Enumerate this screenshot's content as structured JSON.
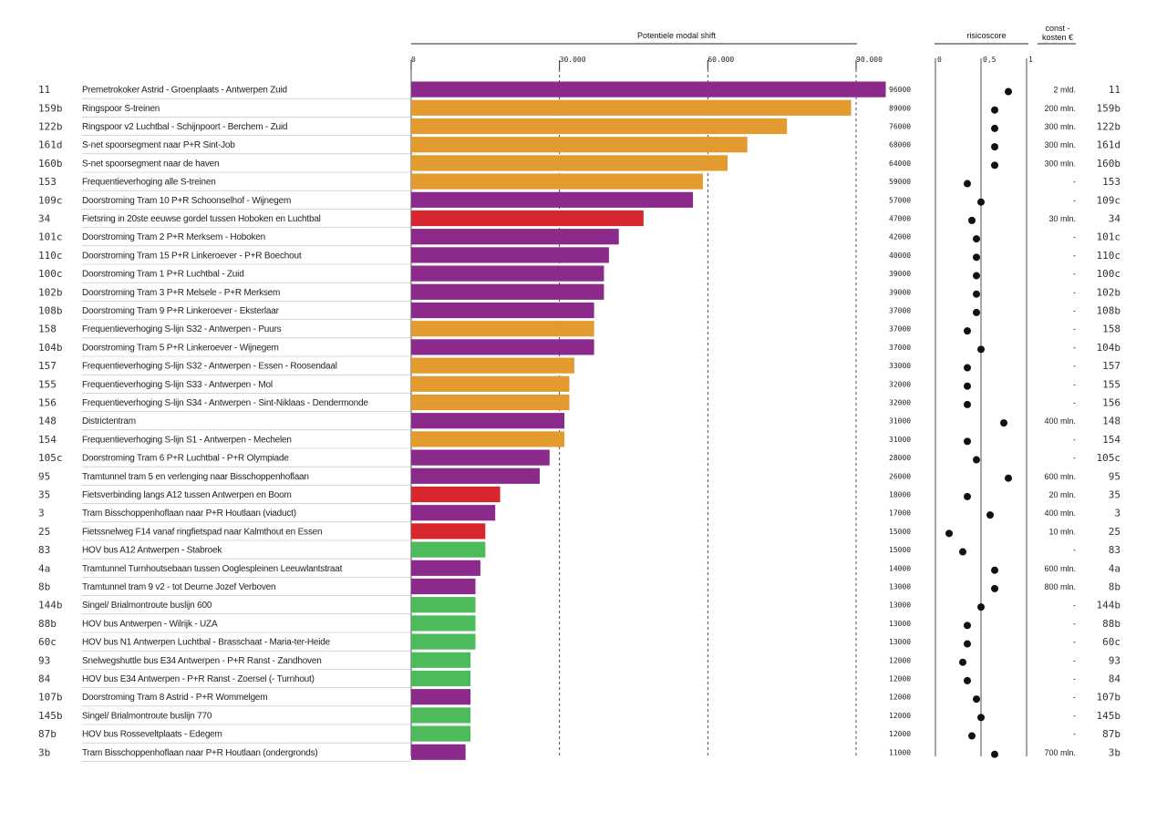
{
  "colors": {
    "tram": "#8c2a8c",
    "rail": "#e39a2e",
    "bike": "#d8262e",
    "bus": "#4dbb5c",
    "dot": "#111111",
    "grid": "#222222"
  },
  "headers": {
    "shift": "Potentiele modal shift",
    "risk": "risicoscore",
    "cost_line1": "const -",
    "cost_line2": "kosten €"
  },
  "chart_data": {
    "type": "bar",
    "orientation": "horizontal",
    "title": "Potentiele modal shift",
    "xlim": [
      0,
      90000
    ],
    "xticks": [
      "0",
      "30.000",
      "60.000",
      "90.000"
    ],
    "xtick_values": [
      0,
      30000,
      60000,
      90000
    ],
    "risk_lim": [
      0,
      1
    ],
    "risk_ticks": [
      "0",
      "0,5",
      "1"
    ],
    "risk_tick_values": [
      0,
      0.5,
      1
    ],
    "rows": [
      {
        "id": "11",
        "label": "Premetrokoker Astrid - Groenplaats - Antwerpen Zuid",
        "value": 96000,
        "value_label": "96000",
        "color": "tram",
        "risk": 0.8,
        "cost": "2 mld."
      },
      {
        "id": "159b",
        "label": "Ringspoor S-treinen",
        "value": 89000,
        "value_label": "89000",
        "color": "rail",
        "risk": 0.65,
        "cost": "200 mln."
      },
      {
        "id": "122b",
        "label": "Ringspoor v2 Luchtbal - Schijnpoort - Berchem - Zuid",
        "value": 76000,
        "value_label": "76000",
        "color": "rail",
        "risk": 0.65,
        "cost": "300 mln."
      },
      {
        "id": "161d",
        "label": "S-net spoorsegment naar P+R Sint-Job",
        "value": 68000,
        "value_label": "68000",
        "color": "rail",
        "risk": 0.65,
        "cost": "300 mln."
      },
      {
        "id": "160b",
        "label": "S-net spoorsegment naar de haven",
        "value": 64000,
        "value_label": "64000",
        "color": "rail",
        "risk": 0.65,
        "cost": "300 mln."
      },
      {
        "id": "153",
        "label": "Frequentieverhoging alle S-treinen",
        "value": 59000,
        "value_label": "59000",
        "color": "rail",
        "risk": 0.35,
        "cost": "-"
      },
      {
        "id": "109c",
        "label": "Doorstroming Tram 10 P+R Schoonselhof - Wijnegem",
        "value": 57000,
        "value_label": "57000",
        "color": "tram",
        "risk": 0.5,
        "cost": "-"
      },
      {
        "id": "34",
        "label": "Fietsring in 20ste eeuwse gordel tussen Hoboken en Luchtbal",
        "value": 47000,
        "value_label": "47000",
        "color": "bike",
        "risk": 0.4,
        "cost": "30 mln."
      },
      {
        "id": "101c",
        "label": "Doorstroming Tram 2 P+R Merksem - Hoboken",
        "value": 42000,
        "value_label": "42000",
        "color": "tram",
        "risk": 0.45,
        "cost": "-"
      },
      {
        "id": "110c",
        "label": "Doorstroming Tram 15 P+R Linkeroever - P+R Boechout",
        "value": 40000,
        "value_label": "40000",
        "color": "tram",
        "risk": 0.45,
        "cost": "-"
      },
      {
        "id": "100c",
        "label": "Doorstroming Tram 1 P+R Luchtbal - Zuid",
        "value": 39000,
        "value_label": "39000",
        "color": "tram",
        "risk": 0.45,
        "cost": "-"
      },
      {
        "id": "102b",
        "label": "Doorstroming Tram 3 P+R Melsele - P+R Merksem",
        "value": 39000,
        "value_label": "39000",
        "color": "tram",
        "risk": 0.45,
        "cost": "-"
      },
      {
        "id": "108b",
        "label": "Doorstroming Tram 9 P+R Linkeroever - Eksterlaar",
        "value": 37000,
        "value_label": "37000",
        "color": "tram",
        "risk": 0.45,
        "cost": "-"
      },
      {
        "id": "158",
        "label": "Frequentieverhoging S-lijn S32 - Antwerpen - Puurs",
        "value": 37000,
        "value_label": "37000",
        "color": "rail",
        "risk": 0.35,
        "cost": "-"
      },
      {
        "id": "104b",
        "label": "Doorstroming Tram 5 P+R Linkeroever - Wijnegem",
        "value": 37000,
        "value_label": "37000",
        "color": "tram",
        "risk": 0.5,
        "cost": "-"
      },
      {
        "id": "157",
        "label": "Frequentieverhoging S-lijn S32 - Antwerpen - Essen - Roosendaal",
        "value": 33000,
        "value_label": "33000",
        "color": "rail",
        "risk": 0.35,
        "cost": "-"
      },
      {
        "id": "155",
        "label": "Frequentieverhoging S-lijn S33 - Antwerpen - Mol",
        "value": 32000,
        "value_label": "32000",
        "color": "rail",
        "risk": 0.35,
        "cost": "-"
      },
      {
        "id": "156",
        "label": "Frequentieverhoging S-lijn S34 - Antwerpen - Sint-Niklaas - Dendermonde",
        "value": 32000,
        "value_label": "32000",
        "color": "rail",
        "risk": 0.35,
        "cost": "-"
      },
      {
        "id": "148",
        "label": "Districtentram",
        "value": 31000,
        "value_label": "31000",
        "color": "tram",
        "risk": 0.75,
        "cost": "400 mln."
      },
      {
        "id": "154",
        "label": "Frequentieverhoging S-lijn S1 - Antwerpen - Mechelen",
        "value": 31000,
        "value_label": "31000",
        "color": "rail",
        "risk": 0.35,
        "cost": "-"
      },
      {
        "id": "105c",
        "label": "Doorstroming Tram 6 P+R Luchtbal - P+R Olympiade",
        "value": 28000,
        "value_label": "28000",
        "color": "tram",
        "risk": 0.45,
        "cost": "-"
      },
      {
        "id": "95",
        "label": "Tramtunnel tram 5 en verlenging naar Bisschoppenhoflaan",
        "value": 26000,
        "value_label": "26000",
        "color": "tram",
        "risk": 0.8,
        "cost": "600 mln."
      },
      {
        "id": "35",
        "label": "Fietsverbinding langs A12 tussen Antwerpen en Boom",
        "value": 18000,
        "value_label": "18000",
        "color": "bike",
        "risk": 0.35,
        "cost": "20 mln."
      },
      {
        "id": "3",
        "label": "Tram Bisschoppenhoflaan naar P+R Houtlaan (viaduct)",
        "value": 17000,
        "value_label": "17000",
        "color": "tram",
        "risk": 0.6,
        "cost": "400 mln."
      },
      {
        "id": "25",
        "label": "Fietssnelweg F14 vanaf ringfietspad naar Kalmthout en Essen",
        "value": 15000,
        "value_label": "15000",
        "color": "bike",
        "risk": 0.15,
        "cost": "10 mln."
      },
      {
        "id": "83",
        "label": "HOV bus A12 Antwerpen - Stabroek",
        "value": 15000,
        "value_label": "15000",
        "color": "bus",
        "risk": 0.3,
        "cost": "-"
      },
      {
        "id": "4a",
        "label": "Tramtunnel Turnhoutsebaan tussen Ooglespleinen Leeuwlantstraat",
        "value": 14000,
        "value_label": "14000",
        "color": "tram",
        "risk": 0.65,
        "cost": "600 mln."
      },
      {
        "id": "8b",
        "label": "Tramtunnel tram 9 v2 - tot Deurne Jozef Verboven",
        "value": 13000,
        "value_label": "13000",
        "color": "tram",
        "risk": 0.65,
        "cost": "800 mln."
      },
      {
        "id": "144b",
        "label": "Singel/ Brialmontroute buslijn 600",
        "value": 13000,
        "value_label": "13000",
        "color": "bus",
        "risk": 0.5,
        "cost": "-"
      },
      {
        "id": "88b",
        "label": "HOV bus Antwerpen - Wilrijk - UZA",
        "value": 13000,
        "value_label": "13000",
        "color": "bus",
        "risk": 0.35,
        "cost": "-"
      },
      {
        "id": "60c",
        "label": "HOV bus N1 Antwerpen Luchtbal - Brasschaat - Maria-ter-Heide",
        "value": 13000,
        "value_label": "13000",
        "color": "bus",
        "risk": 0.35,
        "cost": "-"
      },
      {
        "id": "93",
        "label": "Snelwegshuttle bus E34 Antwerpen - P+R Ranst - Zandhoven",
        "value": 12000,
        "value_label": "12000",
        "color": "bus",
        "risk": 0.3,
        "cost": "-"
      },
      {
        "id": "84",
        "label": "HOV bus E34 Antwerpen - P+R Ranst - Zoersel (- Turnhout)",
        "value": 12000,
        "value_label": "12000",
        "color": "bus",
        "risk": 0.35,
        "cost": "-"
      },
      {
        "id": "107b",
        "label": "Doorstroming Tram 8 Astrid - P+R Wommelgem",
        "value": 12000,
        "value_label": "12000",
        "color": "tram",
        "risk": 0.45,
        "cost": "-"
      },
      {
        "id": "145b",
        "label": "Singel/ Brialmontroute buslijn 770",
        "value": 12000,
        "value_label": "12000",
        "color": "bus",
        "risk": 0.5,
        "cost": "-"
      },
      {
        "id": "87b",
        "label": "HOV bus Rosseveltplaats - Edegem",
        "value": 12000,
        "value_label": "12000",
        "color": "bus",
        "risk": 0.4,
        "cost": "-"
      },
      {
        "id": "3b",
        "label": "Tram Bisschoppenhoflaan naar P+R Houtlaan (ondergronds)",
        "value": 11000,
        "value_label": "11000",
        "color": "tram",
        "risk": 0.65,
        "cost": "700 mln."
      }
    ]
  }
}
